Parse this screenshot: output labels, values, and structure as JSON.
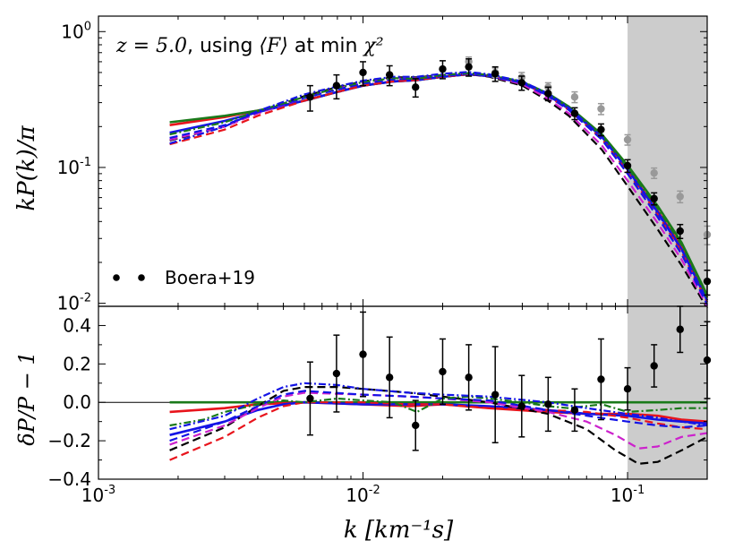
{
  "chart_data": [
    {
      "panel": "top",
      "type": "line",
      "title": "z = 5.0, using ⟨F⟩ at min χ²",
      "title_parts": {
        "z": "z = 5.0",
        "mid": ", using ",
        "F": "⟨F⟩",
        "tail": " at min ",
        "chi": "χ²"
      },
      "xlabel": "k [km⁻¹s]",
      "ylabel": "kP(k)/π",
      "xscale": "log",
      "yscale": "log",
      "xlim": [
        0.001,
        0.2
      ],
      "ylim": [
        0.0095,
        1.3
      ],
      "yticks": [
        0.01,
        0.1,
        1.0
      ],
      "ytick_labels": [
        {
          "base": "10",
          "exp": "-2"
        },
        {
          "base": "10",
          "exp": "-1"
        },
        {
          "base": "10",
          "exp": "0"
        }
      ],
      "shaded_region": {
        "from": 0.1,
        "to": 0.2,
        "color": "#cccccc"
      },
      "legend": {
        "label": "Boera+19",
        "placement": "bottom-left"
      },
      "series": [
        {
          "name": "red-solid",
          "color": "#e8141c",
          "style": "solid",
          "x": [
            0.00186,
            0.003,
            0.004,
            0.006,
            0.008,
            0.01,
            0.013,
            0.016,
            0.02,
            0.025,
            0.03,
            0.04,
            0.05,
            0.06,
            0.08,
            0.1,
            0.13,
            0.16,
            0.2
          ],
          "y": [
            0.205,
            0.235,
            0.262,
            0.31,
            0.36,
            0.4,
            0.43,
            0.44,
            0.465,
            0.485,
            0.47,
            0.42,
            0.34,
            0.27,
            0.17,
            0.098,
            0.048,
            0.026,
            0.011
          ]
        },
        {
          "name": "green-solid",
          "color": "#1a7a1a",
          "style": "solid",
          "x": [
            0.00186,
            0.003,
            0.004,
            0.006,
            0.008,
            0.01,
            0.013,
            0.016,
            0.02,
            0.025,
            0.03,
            0.04,
            0.05,
            0.06,
            0.08,
            0.1,
            0.13,
            0.16,
            0.2
          ],
          "y": [
            0.215,
            0.24,
            0.262,
            0.31,
            0.36,
            0.4,
            0.43,
            0.44,
            0.465,
            0.485,
            0.475,
            0.425,
            0.35,
            0.28,
            0.175,
            0.104,
            0.052,
            0.028,
            0.0115
          ]
        },
        {
          "name": "blue-solid",
          "color": "#1414e6",
          "style": "solid",
          "x": [
            0.00186,
            0.003,
            0.004,
            0.006,
            0.008,
            0.01,
            0.013,
            0.016,
            0.02,
            0.025,
            0.03,
            0.04,
            0.05,
            0.06,
            0.08,
            0.1,
            0.13,
            0.16,
            0.2
          ],
          "y": [
            0.18,
            0.22,
            0.255,
            0.31,
            0.36,
            0.4,
            0.43,
            0.44,
            0.465,
            0.485,
            0.47,
            0.42,
            0.34,
            0.27,
            0.168,
            0.097,
            0.047,
            0.025,
            0.0105
          ]
        },
        {
          "name": "red-dashed",
          "color": "#e8141c",
          "style": "dashed",
          "x": [
            0.00186,
            0.003,
            0.004,
            0.006,
            0.008,
            0.01,
            0.013,
            0.016,
            0.02,
            0.025,
            0.03,
            0.04,
            0.05,
            0.06,
            0.08,
            0.1,
            0.13,
            0.16,
            0.2
          ],
          "y": [
            0.148,
            0.19,
            0.24,
            0.31,
            0.36,
            0.4,
            0.43,
            0.44,
            0.465,
            0.485,
            0.47,
            0.42,
            0.335,
            0.265,
            0.162,
            0.093,
            0.045,
            0.024,
            0.0102
          ]
        },
        {
          "name": "black-dashed",
          "color": "#000000",
          "style": "dashed",
          "x": [
            0.00186,
            0.003,
            0.004,
            0.006,
            0.008,
            0.01,
            0.013,
            0.016,
            0.02,
            0.025,
            0.03,
            0.04,
            0.05,
            0.06,
            0.08,
            0.1,
            0.13,
            0.16,
            0.2
          ],
          "y": [
            0.158,
            0.2,
            0.255,
            0.335,
            0.39,
            0.43,
            0.46,
            0.46,
            0.48,
            0.49,
            0.465,
            0.4,
            0.31,
            0.24,
            0.135,
            0.073,
            0.035,
            0.019,
            0.0092
          ]
        },
        {
          "name": "magenta-dashed",
          "color": "#cc22cc",
          "style": "dashed",
          "x": [
            0.00186,
            0.003,
            0.004,
            0.006,
            0.008,
            0.01,
            0.013,
            0.016,
            0.02,
            0.025,
            0.03,
            0.04,
            0.05,
            0.06,
            0.08,
            0.1,
            0.13,
            0.16,
            0.2
          ],
          "y": [
            0.16,
            0.2,
            0.25,
            0.325,
            0.38,
            0.42,
            0.45,
            0.455,
            0.475,
            0.49,
            0.47,
            0.41,
            0.32,
            0.25,
            0.145,
            0.08,
            0.039,
            0.021,
            0.0095
          ]
        },
        {
          "name": "blue-dashed",
          "color": "#1414e6",
          "style": "dashed",
          "x": [
            0.00186,
            0.003,
            0.004,
            0.006,
            0.008,
            0.01,
            0.013,
            0.016,
            0.02,
            0.025,
            0.03,
            0.04,
            0.05,
            0.06,
            0.08,
            0.1,
            0.13,
            0.16,
            0.2
          ],
          "y": [
            0.165,
            0.205,
            0.255,
            0.325,
            0.375,
            0.415,
            0.445,
            0.45,
            0.47,
            0.49,
            0.47,
            0.42,
            0.335,
            0.265,
            0.16,
            0.09,
            0.043,
            0.023,
            0.0098
          ]
        },
        {
          "name": "green-dashdot",
          "color": "#1a7a1a",
          "style": "dashdot",
          "x": [
            0.00186,
            0.003,
            0.004,
            0.006,
            0.008,
            0.01,
            0.013,
            0.016,
            0.02,
            0.025,
            0.03,
            0.04,
            0.05,
            0.06,
            0.08,
            0.1,
            0.13,
            0.16,
            0.2
          ],
          "y": [
            0.175,
            0.215,
            0.26,
            0.33,
            0.385,
            0.425,
            0.455,
            0.45,
            0.48,
            0.495,
            0.48,
            0.43,
            0.35,
            0.275,
            0.17,
            0.1,
            0.05,
            0.027,
            0.011
          ]
        },
        {
          "name": "blue-dashdot",
          "color": "#1414e6",
          "style": "dashdot",
          "x": [
            0.00186,
            0.003,
            0.004,
            0.006,
            0.008,
            0.01,
            0.013,
            0.016,
            0.02,
            0.025,
            0.03,
            0.04,
            0.05,
            0.06,
            0.08,
            0.1,
            0.13,
            0.16,
            0.2
          ],
          "y": [
            0.15,
            0.2,
            0.26,
            0.345,
            0.395,
            0.435,
            0.465,
            0.465,
            0.49,
            0.505,
            0.485,
            0.43,
            0.35,
            0.275,
            0.168,
            0.096,
            0.046,
            0.025,
            0.0104
          ]
        }
      ],
      "data_points": {
        "name": "Boera+19",
        "color": "#000000",
        "k": [
          0.00631,
          0.00794,
          0.01,
          0.0126,
          0.0158,
          0.02,
          0.0251,
          0.0316,
          0.0398,
          0.0501,
          0.0631,
          0.0794,
          0.1,
          0.126,
          0.158,
          0.2
        ],
        "y": [
          0.33,
          0.4,
          0.5,
          0.48,
          0.39,
          0.53,
          0.55,
          0.49,
          0.42,
          0.35,
          0.25,
          0.19,
          0.103,
          0.059,
          0.034,
          0.0145
        ],
        "err": [
          0.07,
          0.08,
          0.1,
          0.08,
          0.06,
          0.08,
          0.08,
          0.06,
          0.05,
          0.04,
          0.025,
          0.019,
          0.011,
          0.006,
          0.004,
          0.003
        ]
      },
      "gray_points": {
        "color": "#999999",
        "k": [
          0.0251,
          0.0316,
          0.0398,
          0.0501,
          0.0631,
          0.0794,
          0.1,
          0.126,
          0.158,
          0.2
        ],
        "y": [
          0.6,
          0.5,
          0.46,
          0.39,
          0.33,
          0.27,
          0.16,
          0.091,
          0.061,
          0.032
        ],
        "err": [
          0.05,
          0.04,
          0.04,
          0.03,
          0.03,
          0.025,
          0.014,
          0.008,
          0.006,
          0.005
        ]
      }
    },
    {
      "panel": "bottom",
      "type": "line",
      "xlabel": "k [km⁻¹s]",
      "ylabel": "δP/P − 1",
      "xscale": "log",
      "xlim": [
        0.001,
        0.2
      ],
      "ylim": [
        -0.4,
        0.5
      ],
      "yticks": [
        -0.4,
        -0.2,
        0.0,
        0.2,
        0.4
      ],
      "ytick_labels": [
        "−0.4",
        "−0.2",
        "0.0",
        "0.2",
        "0.4"
      ],
      "xticks": [
        0.001,
        0.01,
        0.1
      ],
      "xtick_labels": [
        {
          "base": "10",
          "exp": "-3"
        },
        {
          "base": "10",
          "exp": "-2"
        },
        {
          "base": "10",
          "exp": "-1"
        }
      ],
      "zero_line": 0.0,
      "series": [
        {
          "name": "green-solid",
          "color": "#1a7a1a",
          "style": "solid",
          "x": [
            0.00186,
            0.2
          ],
          "y": [
            0.0,
            0.0
          ]
        },
        {
          "name": "red-solid",
          "color": "#e8141c",
          "style": "solid",
          "x": [
            0.00186,
            0.003,
            0.004,
            0.006,
            0.01,
            0.015,
            0.02,
            0.03,
            0.05,
            0.07,
            0.1,
            0.13,
            0.16,
            0.2
          ],
          "y": [
            -0.05,
            -0.03,
            -0.01,
            0.0,
            -0.01,
            -0.02,
            -0.01,
            -0.03,
            -0.05,
            -0.06,
            -0.06,
            -0.07,
            -0.09,
            -0.1
          ]
        },
        {
          "name": "blue-solid",
          "color": "#1414e6",
          "style": "solid",
          "x": [
            0.00186,
            0.003,
            0.004,
            0.005,
            0.006,
            0.01,
            0.015,
            0.02,
            0.03,
            0.05,
            0.07,
            0.1,
            0.13,
            0.16,
            0.2
          ],
          "y": [
            -0.17,
            -0.1,
            -0.04,
            -0.01,
            0.0,
            -0.01,
            -0.01,
            -0.01,
            -0.02,
            -0.04,
            -0.06,
            -0.07,
            -0.09,
            -0.1,
            -0.11
          ]
        },
        {
          "name": "red-dashed",
          "color": "#e8141c",
          "style": "dashed",
          "x": [
            0.00186,
            0.003,
            0.004,
            0.005,
            0.006,
            0.01,
            0.015,
            0.02,
            0.03,
            0.05,
            0.07,
            0.1,
            0.13,
            0.16,
            0.2
          ],
          "y": [
            -0.3,
            -0.18,
            -0.08,
            -0.02,
            0.0,
            0.0,
            -0.01,
            -0.01,
            -0.03,
            -0.04,
            -0.05,
            -0.08,
            -0.11,
            -0.13,
            -0.14
          ]
        },
        {
          "name": "black-dashed",
          "color": "#000000",
          "style": "dashed",
          "x": [
            0.00186,
            0.003,
            0.004,
            0.005,
            0.006,
            0.008,
            0.01,
            0.015,
            0.02,
            0.03,
            0.05,
            0.07,
            0.09,
            0.11,
            0.13,
            0.16,
            0.2
          ],
          "y": [
            -0.25,
            -0.13,
            -0.02,
            0.06,
            0.08,
            0.08,
            0.07,
            0.05,
            0.03,
            0.0,
            -0.06,
            -0.14,
            -0.25,
            -0.32,
            -0.31,
            -0.25,
            -0.18
          ]
        },
        {
          "name": "magenta-dashed",
          "color": "#cc22cc",
          "style": "dashed",
          "x": [
            0.00186,
            0.003,
            0.004,
            0.005,
            0.006,
            0.01,
            0.015,
            0.02,
            0.03,
            0.05,
            0.07,
            0.09,
            0.11,
            0.13,
            0.16,
            0.2
          ],
          "y": [
            -0.22,
            -0.12,
            -0.03,
            0.03,
            0.05,
            0.04,
            0.03,
            0.02,
            0.0,
            -0.05,
            -0.1,
            -0.17,
            -0.24,
            -0.23,
            -0.18,
            -0.16
          ]
        },
        {
          "name": "blue-dashed",
          "color": "#1414e6",
          "style": "dashed",
          "x": [
            0.00186,
            0.003,
            0.004,
            0.005,
            0.006,
            0.01,
            0.015,
            0.02,
            0.03,
            0.05,
            0.07,
            0.1,
            0.13,
            0.16,
            0.2
          ],
          "y": [
            -0.2,
            -0.1,
            -0.02,
            0.04,
            0.06,
            0.04,
            0.03,
            0.02,
            0.01,
            -0.04,
            -0.07,
            -0.1,
            -0.12,
            -0.13,
            -0.12
          ]
        },
        {
          "name": "green-dashdot",
          "color": "#1a7a1a",
          "style": "dashdot",
          "x": [
            0.00186,
            0.0025,
            0.003,
            0.004,
            0.005,
            0.006,
            0.008,
            0.01,
            0.013,
            0.016,
            0.02,
            0.025,
            0.03,
            0.04,
            0.05,
            0.06,
            0.08,
            0.1,
            0.13,
            0.16,
            0.2
          ],
          "y": [
            -0.12,
            -0.09,
            -0.05,
            -0.01,
            0.01,
            0.0,
            0.02,
            0.01,
            0.0,
            -0.05,
            0.02,
            0.03,
            0.02,
            0.0,
            -0.02,
            -0.03,
            -0.01,
            -0.05,
            -0.04,
            -0.03,
            -0.03
          ]
        },
        {
          "name": "blue-dashdot",
          "color": "#1414e6",
          "style": "dashdot",
          "x": [
            0.00186,
            0.003,
            0.004,
            0.005,
            0.006,
            0.008,
            0.01,
            0.015,
            0.02,
            0.03,
            0.05,
            0.07,
            0.1,
            0.13,
            0.16,
            0.2
          ],
          "y": [
            -0.14,
            -0.07,
            0.02,
            0.08,
            0.1,
            0.09,
            0.07,
            0.05,
            0.04,
            0.03,
            0.0,
            -0.03,
            -0.06,
            -0.08,
            -0.1,
            -0.12
          ]
        }
      ],
      "data_points": {
        "name": "Boera+19",
        "color": "#000000",
        "k": [
          0.00631,
          0.00794,
          0.01,
          0.0126,
          0.0158,
          0.02,
          0.0251,
          0.0316,
          0.0398,
          0.0501,
          0.0631,
          0.0794,
          0.1,
          0.126,
          0.158,
          0.2
        ],
        "y": [
          0.02,
          0.15,
          0.25,
          0.13,
          -0.12,
          0.16,
          0.13,
          0.04,
          -0.02,
          -0.01,
          -0.04,
          0.12,
          0.07,
          0.19,
          0.38,
          0.22
        ],
        "err": [
          0.19,
          0.2,
          0.22,
          0.21,
          0.13,
          0.17,
          0.17,
          0.25,
          0.16,
          0.14,
          0.11,
          0.21,
          0.11,
          0.11,
          0.12,
          0.2
        ]
      }
    }
  ]
}
